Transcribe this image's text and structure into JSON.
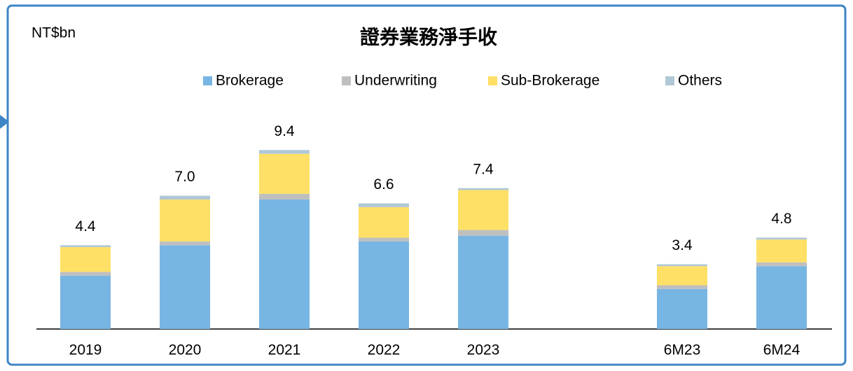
{
  "chart_data": {
    "type": "stacked_bar",
    "title": "證券業務淨手收",
    "unit_label": "NT$bn",
    "categories": [
      "2019",
      "2020",
      "2021",
      "2022",
      "2023",
      null,
      "6M23",
      "6M24"
    ],
    "series": [
      {
        "name": "Brokerage",
        "color": "#77b5e3",
        "values": [
          2.8,
          4.4,
          6.8,
          4.6,
          4.9,
          null,
          2.1,
          3.3
        ]
      },
      {
        "name": "Underwriting",
        "color": "#bfbfbf",
        "values": [
          0.2,
          0.2,
          0.3,
          0.2,
          0.3,
          null,
          0.2,
          0.2
        ]
      },
      {
        "name": "Sub-Brokerage",
        "color": "#ffe066",
        "values": [
          1.3,
          2.2,
          2.1,
          1.6,
          2.1,
          null,
          1.0,
          1.2
        ]
      },
      {
        "name": "Others",
        "color": "#b0c8d6",
        "values": [
          0.1,
          0.2,
          0.2,
          0.2,
          0.1,
          null,
          0.1,
          0.1
        ]
      }
    ],
    "totals": [
      4.4,
      7.0,
      9.4,
      6.6,
      7.4,
      null,
      3.4,
      4.8
    ],
    "total_labels": [
      "4.4",
      "7.0",
      "9.4",
      "6.6",
      "7.4",
      null,
      "3.4",
      "4.8"
    ]
  }
}
